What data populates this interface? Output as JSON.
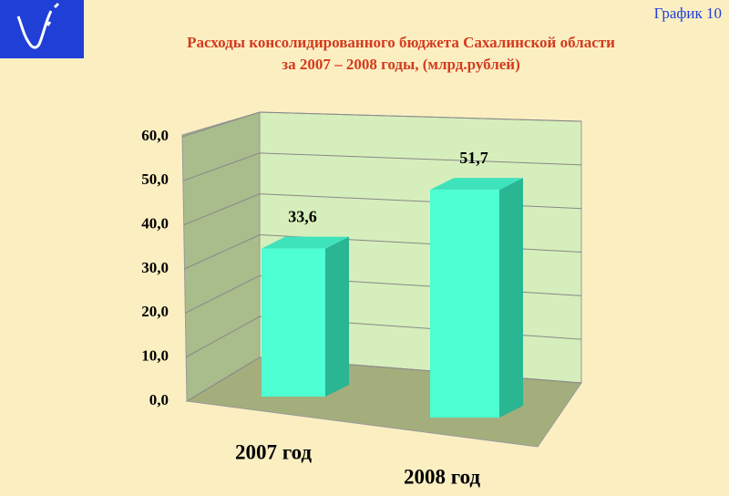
{
  "badge": "График 10",
  "chart_data": {
    "type": "bar3d",
    "title": [
      "Расходы консолидированного бюджета Сахалинской области",
      "за 2007 – 2008 годы, (млрд.рублей)"
    ],
    "categories": [
      "2007 год",
      "2008 год"
    ],
    "values": [
      33.6,
      51.7
    ],
    "value_labels": [
      "33,6",
      "51,7"
    ],
    "color": "#4dffd2",
    "ylim": [
      0,
      60
    ],
    "yticks": [
      {
        "value": 0,
        "label": "0,0"
      },
      {
        "value": 10,
        "label": "10,0"
      },
      {
        "value": 20,
        "label": "20,0"
      },
      {
        "value": 30,
        "label": "30,0"
      },
      {
        "value": 40,
        "label": "40,0"
      },
      {
        "value": 50,
        "label": "50,0"
      },
      {
        "value": 60,
        "label": "60,0"
      }
    ],
    "grid": true
  }
}
